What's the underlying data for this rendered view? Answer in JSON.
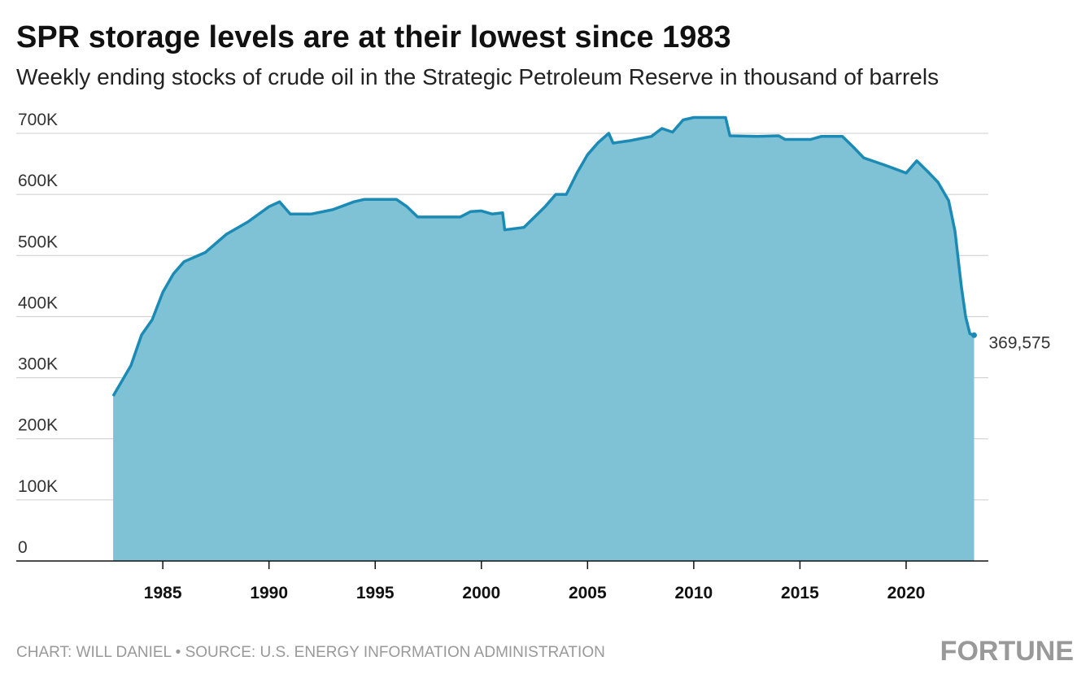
{
  "chart_data": {
    "type": "area",
    "title": "SPR storage levels are at their lowest since 1983",
    "subtitle": "Weekly ending stocks of crude oil in the Strategic Petroleum Reserve in thousand of barrels",
    "source": "CHART: WILL DANIEL • SOURCE: U.S. ENERGY INFORMATION ADMINISTRATION",
    "logo": "FORTUNE",
    "x": [
      1982.66,
      1983.5,
      1984,
      1984.5,
      1985,
      1985.5,
      1986,
      1987,
      1988,
      1989,
      1990,
      1990.5,
      1991,
      1992,
      1993,
      1994,
      1994.5,
      1996,
      1996.5,
      1997,
      1999,
      1999.5,
      2000,
      2000.5,
      2001,
      2001.1,
      2002,
      2003,
      2003.5,
      2004,
      2004.5,
      2005,
      2005.5,
      2006,
      2006.2,
      2007,
      2008,
      2008.5,
      2009,
      2009.5,
      2010,
      2011.5,
      2011.7,
      2013,
      2014,
      2014.3,
      2015.5,
      2016,
      2017,
      2017.5,
      2018,
      2019,
      2020,
      2020.5,
      2021,
      2021.5,
      2022,
      2022.3,
      2022.6,
      2022.8,
      2023,
      2023.2
    ],
    "values": [
      270000,
      320000,
      370000,
      395000,
      440000,
      470000,
      490000,
      505000,
      535000,
      555000,
      580000,
      588000,
      568000,
      568000,
      575000,
      588000,
      592000,
      592000,
      580000,
      563000,
      563000,
      572000,
      573000,
      568000,
      570000,
      542000,
      546000,
      580000,
      600000,
      600000,
      635000,
      665000,
      685000,
      700000,
      684000,
      688000,
      695000,
      708000,
      702000,
      722000,
      726000,
      726000,
      696000,
      695000,
      696000,
      690000,
      690000,
      695000,
      695000,
      678000,
      660000,
      648000,
      635000,
      655000,
      638000,
      620000,
      590000,
      540000,
      450000,
      400000,
      372000,
      369575
    ],
    "value_labels": [
      null,
      null,
      null,
      null,
      null,
      null,
      null,
      null,
      null,
      null,
      null,
      null,
      null,
      null,
      null,
      null,
      null,
      null,
      null,
      null,
      null,
      null,
      null,
      null,
      null,
      null,
      null,
      null,
      null,
      null,
      null,
      null,
      null,
      null,
      null,
      null,
      null,
      null,
      null,
      null,
      null,
      null,
      null,
      null,
      null,
      null,
      null,
      null,
      null,
      null,
      null,
      null,
      null,
      null,
      null,
      null,
      null,
      null,
      null,
      null,
      null,
      "369,575"
    ],
    "color": "#1b8bb5",
    "fill_color": "#7fc1d5",
    "xlim": [
      1978.1,
      2023.87
    ],
    "xticks": [
      1985,
      1990,
      1995,
      2000,
      2005,
      2010,
      2015,
      2020
    ],
    "ylim": [
      0,
      700000
    ],
    "yticks": [
      0,
      {
        "value": 100000,
        "label": "100K"
      },
      {
        "value": 200000,
        "label": "200K"
      },
      {
        "value": 300000,
        "label": "300K"
      },
      {
        "value": 400000,
        "label": "400K"
      },
      {
        "value": 500000,
        "label": "500K"
      },
      {
        "value": 600000,
        "label": "600K"
      },
      {
        "value": 700000,
        "label": "700K"
      }
    ],
    "grid": true
  }
}
